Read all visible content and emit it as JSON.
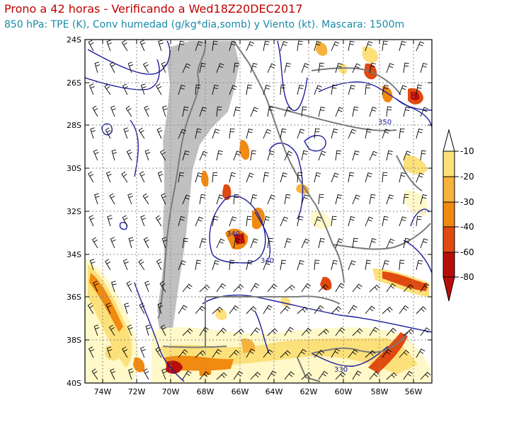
{
  "header": {
    "title": "Prono a 42 horas - Verificando a Wed18Z20DEC2017",
    "subtitle": "850 hPa: TPE (K), Conv humedad (g/kg*dia,somb) y Viento (kt). Mascara: 1500m"
  },
  "axes": {
    "lat_labels": [
      "24S",
      "26S",
      "28S",
      "30S",
      "32S",
      "34S",
      "36S",
      "38S",
      "40S"
    ],
    "lon_labels": [
      "74W",
      "72W",
      "70W",
      "68W",
      "66W",
      "64W",
      "62W",
      "60W",
      "58W",
      "56W"
    ]
  },
  "contour_labels": [
    "350",
    "340",
    "340",
    "330"
  ],
  "colorbar": {
    "labels": [
      "-10",
      "-20",
      "-30",
      "-40",
      "-60",
      "-80"
    ],
    "colors": [
      "#fff8c8",
      "#fce07a",
      "#f6b23c",
      "#f08a10",
      "#e04a10",
      "#b80e0a"
    ]
  },
  "colors": {
    "title": "#c00000",
    "subtitle": "#1a8aa8",
    "contour": "#1c1c9c",
    "mask": "#c0c0c0",
    "border": "#7a7a7a"
  }
}
